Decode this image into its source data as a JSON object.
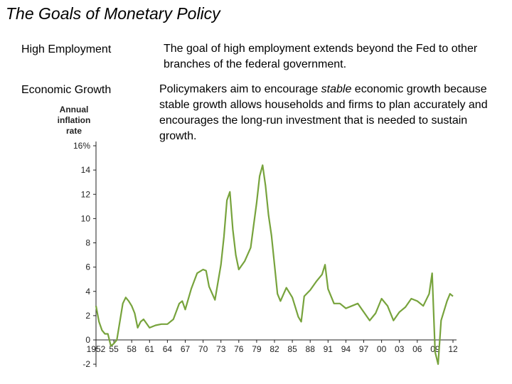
{
  "slide": {
    "title": "The Goals of Monetary Policy",
    "goals": [
      {
        "label": "High Employment",
        "text": "The goal of high employment extends beyond the Fed to other branches of the federal government."
      },
      {
        "label": "Economic Growth",
        "text_before": "Policymakers aim to encourage ",
        "text_em": "stable",
        "text_after": " economic growth because stable growth allows households and firms to plan accurately and encourages the long-run investment that is needed to sustain growth."
      }
    ]
  },
  "chart_data": {
    "type": "line",
    "ylabel": [
      "Annual",
      "inflation",
      "rate"
    ],
    "ylim": [
      -2,
      16
    ],
    "y_ticks": [
      "16%",
      "14",
      "12",
      "10",
      "8",
      "6",
      "4",
      "2",
      "0",
      "-2"
    ],
    "xlim": [
      1952,
      2012
    ],
    "x_ticks": [
      "1952",
      "55",
      "58",
      "61",
      "64",
      "67",
      "70",
      "73",
      "76",
      "79",
      "82",
      "85",
      "88",
      "91",
      "94",
      "97",
      "00",
      "03",
      "06",
      "09",
      "12"
    ],
    "color": "#77a33c",
    "series": [
      {
        "x": [
          1952,
          1952.5,
          1953,
          1953.5,
          1954,
          1954.5,
          1955,
          1955.5,
          1956,
          1956.5,
          1957,
          1957.5,
          1958,
          1958.5,
          1959,
          1959.5,
          1960,
          1961,
          1962,
          1963,
          1964,
          1965,
          1966,
          1966.5,
          1967,
          1968,
          1969,
          1970,
          1970.5,
          1971,
          1972,
          1973,
          1973.5,
          1974,
          1974.5,
          1975,
          1975.5,
          1976,
          1977,
          1978,
          1979,
          1979.5,
          1980,
          1980.5,
          1981,
          1981.5,
          1982,
          1982.5,
          1983,
          1984,
          1985,
          1986,
          1986.5,
          1987,
          1988,
          1989,
          1990,
          1990.5,
          1991,
          1992,
          1993,
          1994,
          1995,
          1996,
          1997,
          1998,
          1999,
          2000,
          2001,
          2002,
          2003,
          2004,
          2005,
          2006,
          2007,
          2008,
          2008.5,
          2009,
          2009.5,
          2010,
          2011,
          2011.5,
          2012
        ],
        "y": [
          2.8,
          1.5,
          0.8,
          0.5,
          0.5,
          -0.5,
          -0.3,
          0.0,
          1.5,
          3.0,
          3.5,
          3.2,
          2.8,
          2.2,
          1.0,
          1.5,
          1.7,
          1.0,
          1.2,
          1.3,
          1.3,
          1.7,
          3.0,
          3.2,
          2.5,
          4.2,
          5.5,
          5.8,
          5.7,
          4.4,
          3.3,
          6.2,
          8.5,
          11.5,
          12.2,
          9.1,
          7.0,
          5.8,
          6.5,
          7.6,
          11.3,
          13.5,
          14.4,
          12.7,
          10.3,
          8.6,
          6.2,
          3.8,
          3.2,
          4.3,
          3.5,
          1.9,
          1.5,
          3.6,
          4.1,
          4.8,
          5.4,
          6.2,
          4.2,
          3.0,
          3.0,
          2.6,
          2.8,
          3.0,
          2.3,
          1.6,
          2.2,
          3.4,
          2.8,
          1.6,
          2.3,
          2.7,
          3.4,
          3.2,
          2.8,
          3.8,
          5.5,
          -1.0,
          -2.0,
          1.6,
          3.2,
          3.8,
          3.6
        ]
      }
    ]
  }
}
